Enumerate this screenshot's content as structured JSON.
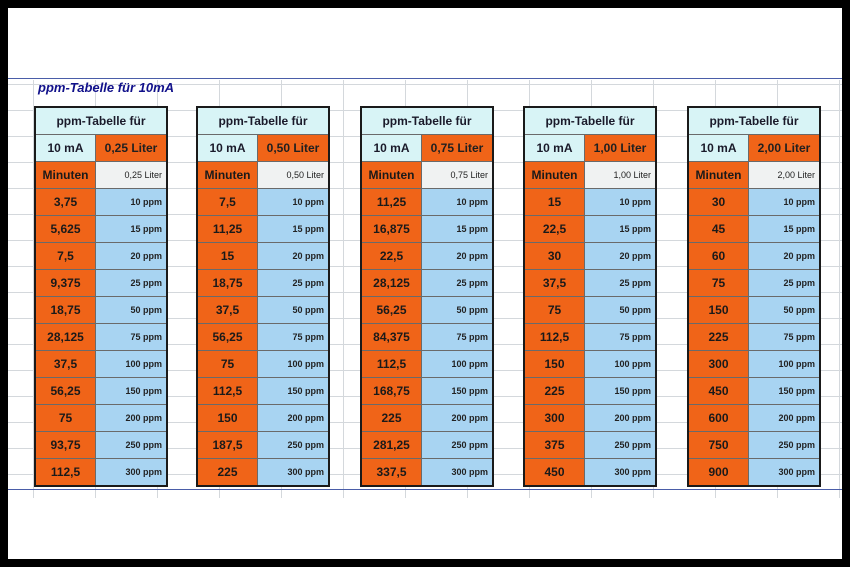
{
  "title": "ppm-Tabelle für 10mA",
  "tables": [
    {
      "header": "ppm-Tabelle für",
      "current": "10 mA",
      "volume": "0,25 Liter",
      "min_header": "Minuten",
      "liter_label": "0,25 Liter",
      "rows": [
        {
          "min": "3,75",
          "ppm": "10 ppm"
        },
        {
          "min": "5,625",
          "ppm": "15 ppm"
        },
        {
          "min": "7,5",
          "ppm": "20 ppm"
        },
        {
          "min": "9,375",
          "ppm": "25 ppm"
        },
        {
          "min": "18,75",
          "ppm": "50 ppm"
        },
        {
          "min": "28,125",
          "ppm": "75 ppm"
        },
        {
          "min": "37,5",
          "ppm": "100 ppm"
        },
        {
          "min": "56,25",
          "ppm": "150 ppm"
        },
        {
          "min": "75",
          "ppm": "200 ppm"
        },
        {
          "min": "93,75",
          "ppm": "250 ppm"
        },
        {
          "min": "112,5",
          "ppm": "300 ppm"
        }
      ]
    },
    {
      "header": "ppm-Tabelle für",
      "current": "10 mA",
      "volume": "0,50 Liter",
      "min_header": "Minuten",
      "liter_label": "0,50 Liter",
      "rows": [
        {
          "min": "7,5",
          "ppm": "10 ppm"
        },
        {
          "min": "11,25",
          "ppm": "15 ppm"
        },
        {
          "min": "15",
          "ppm": "20 ppm"
        },
        {
          "min": "18,75",
          "ppm": "25 ppm"
        },
        {
          "min": "37,5",
          "ppm": "50 ppm"
        },
        {
          "min": "56,25",
          "ppm": "75 ppm"
        },
        {
          "min": "75",
          "ppm": "100 ppm"
        },
        {
          "min": "112,5",
          "ppm": "150 ppm"
        },
        {
          "min": "150",
          "ppm": "200 ppm"
        },
        {
          "min": "187,5",
          "ppm": "250 ppm"
        },
        {
          "min": "225",
          "ppm": "300 ppm"
        }
      ]
    },
    {
      "header": "ppm-Tabelle für",
      "current": "10 mA",
      "volume": "0,75 Liter",
      "min_header": "Minuten",
      "liter_label": "0,75 Liter",
      "rows": [
        {
          "min": "11,25",
          "ppm": "10 ppm"
        },
        {
          "min": "16,875",
          "ppm": "15 ppm"
        },
        {
          "min": "22,5",
          "ppm": "20 ppm"
        },
        {
          "min": "28,125",
          "ppm": "25 ppm"
        },
        {
          "min": "56,25",
          "ppm": "50 ppm"
        },
        {
          "min": "84,375",
          "ppm": "75 ppm"
        },
        {
          "min": "112,5",
          "ppm": "100 ppm"
        },
        {
          "min": "168,75",
          "ppm": "150 ppm"
        },
        {
          "min": "225",
          "ppm": "200 ppm"
        },
        {
          "min": "281,25",
          "ppm": "250 ppm"
        },
        {
          "min": "337,5",
          "ppm": "300 ppm"
        }
      ]
    },
    {
      "header": "ppm-Tabelle für",
      "current": "10 mA",
      "volume": "1,00 Liter",
      "min_header": "Minuten",
      "liter_label": "1,00 Liter",
      "rows": [
        {
          "min": "15",
          "ppm": "10 ppm"
        },
        {
          "min": "22,5",
          "ppm": "15 ppm"
        },
        {
          "min": "30",
          "ppm": "20 ppm"
        },
        {
          "min": "37,5",
          "ppm": "25 ppm"
        },
        {
          "min": "75",
          "ppm": "50 ppm"
        },
        {
          "min": "112,5",
          "ppm": "75 ppm"
        },
        {
          "min": "150",
          "ppm": "100 ppm"
        },
        {
          "min": "225",
          "ppm": "150 ppm"
        },
        {
          "min": "300",
          "ppm": "200 ppm"
        },
        {
          "min": "375",
          "ppm": "250 ppm"
        },
        {
          "min": "450",
          "ppm": "300 ppm"
        }
      ]
    },
    {
      "header": "ppm-Tabelle für",
      "current": "10 mA",
      "volume": "2,00 Liter",
      "min_header": "Minuten",
      "liter_label": "2,00 Liter",
      "rows": [
        {
          "min": "30",
          "ppm": "10 ppm"
        },
        {
          "min": "45",
          "ppm": "15 ppm"
        },
        {
          "min": "60",
          "ppm": "20 ppm"
        },
        {
          "min": "75",
          "ppm": "25 ppm"
        },
        {
          "min": "150",
          "ppm": "50 ppm"
        },
        {
          "min": "225",
          "ppm": "75 ppm"
        },
        {
          "min": "300",
          "ppm": "100 ppm"
        },
        {
          "min": "450",
          "ppm": "150 ppm"
        },
        {
          "min": "600",
          "ppm": "200 ppm"
        },
        {
          "min": "750",
          "ppm": "250 ppm"
        },
        {
          "min": "900",
          "ppm": "300 ppm"
        }
      ]
    }
  ]
}
